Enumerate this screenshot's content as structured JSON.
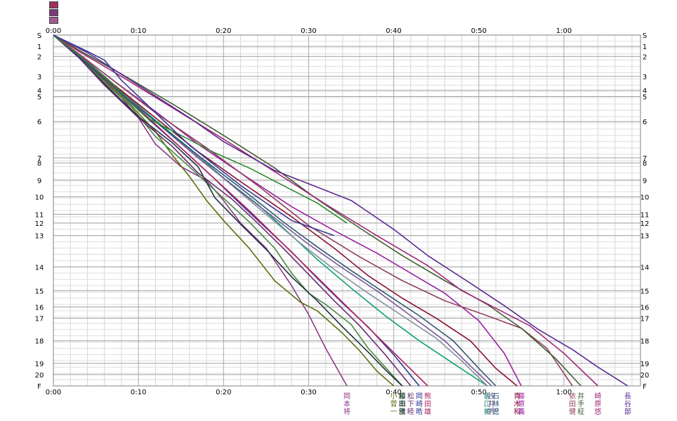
{
  "chart_data": {
    "type": "line",
    "title": "",
    "xlabel": "",
    "ylabel": "",
    "x_ticks": [
      "0:00",
      "0:10",
      "0:20",
      "0:30",
      "0:40",
      "0:50",
      "1:00"
    ],
    "x_range_minutes": [
      0,
      69
    ],
    "y_labels": [
      "S",
      "1",
      "2",
      "3",
      "4",
      "5",
      "6",
      "7",
      "8",
      "9",
      "10",
      "11",
      "12",
      "13",
      "14",
      "15",
      "16",
      "17",
      "18",
      "19",
      "20",
      "F"
    ],
    "y_positions_km": [
      0,
      0.9,
      1.7,
      3.3,
      4.4,
      4.9,
      6.9,
      9.8,
      10.2,
      11.6,
      12.9,
      14.3,
      15.0,
      16.0,
      18.5,
      20.4,
      21.7,
      22.6,
      24.4,
      26.2,
      27.1,
      28.0
    ],
    "grid": true,
    "legend_swatch_colors": [
      "#a03060",
      "#7a3a78",
      "#a05a90"
    ],
    "series": [
      {
        "name": "岡本将",
        "color": "#8a3a88",
        "x": [
          0,
          2,
          5,
          8,
          10,
          12,
          15,
          18,
          20,
          22,
          25,
          28,
          30,
          32,
          34.5
        ],
        "y": [
          0,
          1.1,
          3.0,
          5.0,
          6.6,
          8.7,
          10.5,
          11.6,
          13.2,
          15.0,
          17.0,
          20.0,
          22.3,
          25.0,
          28.0
        ]
      },
      {
        "name": "小菅一",
        "color": "#5a7010",
        "x": [
          0,
          3,
          6,
          9,
          12,
          14,
          16,
          18,
          20,
          23,
          26,
          29,
          31,
          34,
          36,
          38,
          40
        ],
        "y": [
          0,
          1.6,
          3.6,
          5.5,
          7.7,
          9.6,
          11.3,
          13.2,
          14.8,
          17.0,
          19.6,
          21.3,
          22.0,
          23.8,
          25.2,
          26.8,
          28.0
        ]
      },
      {
        "name": "松本佳",
        "color": "#4a8a40",
        "x": [
          0,
          3,
          6,
          9,
          12,
          15,
          19,
          23,
          26,
          28,
          30,
          32,
          35,
          37,
          39,
          41
        ],
        "y": [
          0,
          1.7,
          3.8,
          5.6,
          8.1,
          9.9,
          12.4,
          14.9,
          17.0,
          19.0,
          20.6,
          21.5,
          23.1,
          25.0,
          26.5,
          28.0
        ]
      },
      {
        "name": "藤田雅",
        "color": "#203040",
        "x": [
          0,
          3,
          6,
          10,
          14,
          17,
          19,
          22,
          25,
          28,
          31,
          34,
          37,
          39,
          41
        ],
        "y": [
          0,
          1.8,
          3.9,
          6.5,
          8.6,
          10.5,
          13.0,
          15.1,
          17.1,
          19.3,
          21.2,
          23.3,
          25.3,
          26.7,
          28.0
        ]
      },
      {
        "name": "松下睦",
        "color": "#6a2a70",
        "x": [
          0,
          3,
          6,
          10,
          14,
          17,
          21,
          24,
          27,
          30,
          33,
          36,
          39,
          42
        ],
        "y": [
          0,
          1.8,
          4.0,
          6.6,
          8.9,
          11.0,
          13.1,
          15.0,
          17.0,
          19.1,
          21.2,
          23.2,
          25.5,
          28.0
        ]
      },
      {
        "name": "岡崎晧",
        "color": "#303890",
        "x": [
          0,
          3,
          7,
          11,
          15,
          19,
          22,
          25,
          28,
          31,
          34,
          37,
          40,
          43
        ],
        "y": [
          0,
          1.7,
          4.1,
          6.6,
          9.0,
          11.5,
          13.5,
          15.4,
          17.3,
          19.4,
          21.4,
          23.3,
          25.5,
          28.0
        ]
      },
      {
        "name": "熊田雄",
        "color": "#b02060",
        "x": [
          0,
          3,
          7,
          11,
          15,
          19,
          23,
          26,
          29,
          32,
          35,
          38,
          41,
          44
        ],
        "y": [
          0,
          1.6,
          4.0,
          6.5,
          9.0,
          11.5,
          14.0,
          16.0,
          18.0,
          20.0,
          22.0,
          24.0,
          26.0,
          28.0
        ]
      },
      {
        "name": "坂口祐",
        "color": "#10a070",
        "x": [
          0,
          3,
          7,
          12,
          17,
          20,
          24,
          28,
          31,
          35,
          39,
          43,
          47,
          51
        ],
        "y": [
          0,
          1.5,
          3.9,
          6.8,
          9.6,
          11.4,
          13.5,
          16.0,
          17.9,
          20.2,
          22.4,
          24.4,
          26.2,
          28.0
        ]
      },
      {
        "name": "宮川太",
        "color": "#8090a0",
        "x": [
          0,
          3,
          7,
          12,
          17,
          21,
          25,
          29,
          33,
          37,
          41,
          45,
          48,
          51
        ],
        "y": [
          0,
          1.5,
          3.9,
          6.9,
          9.7,
          12.0,
          14.3,
          16.6,
          18.7,
          20.6,
          22.4,
          24.2,
          26.0,
          28.0
        ]
      },
      {
        "name": "浅井秀",
        "color": "#7a5a98",
        "x": [
          0,
          3,
          7,
          12,
          17,
          22,
          26,
          30,
          34,
          38,
          42,
          46,
          49,
          51.5
        ],
        "y": [
          0,
          1.5,
          3.9,
          6.9,
          9.8,
          12.5,
          14.6,
          16.7,
          18.6,
          20.4,
          22.4,
          24.4,
          26.4,
          28.0
        ]
      },
      {
        "name": "石林遼",
        "color": "#305870",
        "x": [
          0,
          3,
          7,
          12,
          17,
          22,
          27,
          31,
          35,
          39,
          43,
          47,
          50,
          52
        ],
        "y": [
          0,
          1.6,
          4.1,
          6.9,
          9.6,
          12.2,
          14.9,
          16.9,
          18.8,
          20.6,
          22.4,
          24.4,
          26.6,
          28.0
        ]
      },
      {
        "name": "青木和",
        "color": "#8a1030",
        "x": [
          0,
          3,
          7,
          12,
          17,
          22,
          28,
          33,
          37,
          41,
          45,
          49,
          52,
          54.5
        ],
        "y": [
          0,
          1.6,
          3.9,
          6.6,
          9.3,
          11.7,
          14.5,
          17.0,
          19.2,
          21.0,
          22.6,
          24.4,
          26.6,
          28.0
        ]
      },
      {
        "name": "藤原義",
        "color": "#9a20a0",
        "x": [
          0,
          3,
          7,
          12,
          17,
          22,
          28,
          33,
          38,
          42,
          46,
          50,
          53,
          55
        ],
        "y": [
          0,
          1.5,
          3.6,
          6.1,
          8.7,
          11.0,
          13.7,
          15.6,
          17.4,
          19.0,
          20.6,
          22.8,
          25.4,
          28.0
        ]
      },
      {
        "name": "依田健",
        "color": "#904060",
        "x": [
          0,
          3,
          7,
          12,
          18,
          24,
          30,
          36,
          41,
          46,
          51,
          55,
          58,
          61
        ],
        "y": [
          0,
          1.5,
          3.6,
          6.2,
          9.0,
          12.0,
          15.2,
          17.7,
          19.6,
          21.2,
          22.4,
          23.4,
          25.0,
          28.0
        ]
      },
      {
        "name": "井手柾",
        "color": "#406030",
        "x": [
          0,
          3,
          8,
          14,
          20,
          26,
          31,
          36,
          41,
          46,
          51,
          55,
          59,
          62
        ],
        "y": [
          0,
          1.2,
          3.1,
          5.5,
          8.0,
          10.6,
          13.1,
          15.4,
          17.6,
          19.6,
          21.5,
          23.4,
          25.8,
          28.0
        ]
      },
      {
        "name": "崎原悠",
        "color": "#a02878",
        "x": [
          0,
          3,
          8,
          14,
          20,
          26,
          32,
          38,
          44,
          48,
          52,
          56,
          60,
          64
        ],
        "y": [
          0,
          1.3,
          3.3,
          5.8,
          8.3,
          10.9,
          13.5,
          16.0,
          18.4,
          20.4,
          21.8,
          23.2,
          25.4,
          28.0
        ]
      },
      {
        "name": "長谷部",
        "color": "#5a2a90",
        "x": [
          0,
          4,
          10,
          16,
          20,
          26,
          32,
          35,
          40,
          44,
          49,
          53,
          57,
          61,
          64,
          67.5
        ],
        "y": [
          0,
          1.4,
          4.0,
          6.6,
          8.5,
          10.8,
          12.4,
          13.2,
          15.5,
          17.6,
          19.8,
          21.6,
          23.5,
          25.1,
          26.5,
          28.0
        ]
      },
      {
        "name": "",
        "color": "#2a8a2a",
        "x": [
          0,
          3,
          7,
          11,
          15,
          19,
          23,
          27,
          31,
          34.5
        ],
        "y": [
          0,
          1.6,
          3.9,
          6.6,
          8.0,
          9.4,
          10.6,
          12.0,
          13.4,
          15.0
        ]
      },
      {
        "name": "",
        "color": "#3a3a9a",
        "x": [
          0,
          4,
          6,
          8,
          12,
          16,
          22,
          28,
          33
        ],
        "y": [
          0,
          1.3,
          2.0,
          3.6,
          6.2,
          8.8,
          12.0,
          14.8,
          16.0
        ]
      }
    ]
  }
}
